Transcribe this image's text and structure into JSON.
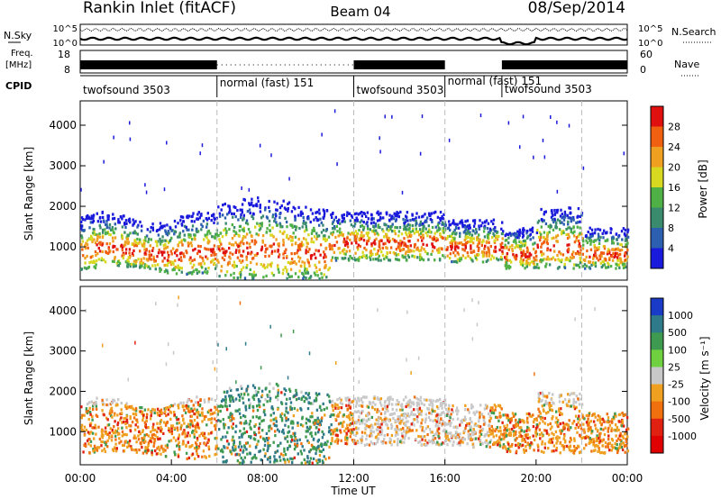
{
  "header": {
    "station": "Rankin Inlet (fitACF)",
    "beam": "Beam 04",
    "date": "08/Sep/2014"
  },
  "top_panel": {
    "nsky_label": "N.Sky",
    "nsky_ticks": [
      "10^5",
      "10^0"
    ],
    "nsearch_label": "N.Search",
    "nsearch_ticks": [
      "10^5",
      "10^0"
    ],
    "freq_label_1": "Freq.",
    "freq_label_2": "[MHz]",
    "freq_ticks": [
      "18",
      "8"
    ],
    "nave_label": "Nave",
    "nave_ticks": [
      "60",
      "0"
    ],
    "cpid_label": "CPID",
    "modes": [
      {
        "label": "twofsound 3503",
        "start_h": 0,
        "end_h": 6
      },
      {
        "label": "normal (fast) 151",
        "start_h": 6,
        "end_h": 12
      },
      {
        "label": "twofsound 3503",
        "start_h": 12,
        "end_h": 16
      },
      {
        "label": "normal (fast) 151",
        "start_h": 16,
        "end_h": 18.5
      },
      {
        "label": "twofsound 3503",
        "start_h": 18.5,
        "end_h": 22
      }
    ]
  },
  "chart_data": [
    {
      "type": "heatmap",
      "title": "",
      "xlabel": "",
      "ylabel": "Slant Range [km]",
      "ylim": [
        180,
        4600
      ],
      "yticks": [
        "1000",
        "2000",
        "3000",
        "4000"
      ],
      "colorbar": {
        "label": "Power [dB]",
        "ticks": [
          "4",
          "8",
          "12",
          "16",
          "20",
          "24",
          "28"
        ],
        "colors": [
          "#1a1adc",
          "#2c5fb0",
          "#3a8a6e",
          "#4fb046",
          "#d8d820",
          "#f0a020",
          "#f06010",
          "#e01010"
        ]
      }
    },
    {
      "type": "heatmap",
      "title": "",
      "xlabel": "Time UT",
      "ylabel": "Slant Range [km]",
      "ylim": [
        180,
        4600
      ],
      "yticks": [
        "1000",
        "2000",
        "3000",
        "4000"
      ],
      "xticks": [
        "00:00",
        "04:00",
        "08:00",
        "12:00",
        "16:00",
        "20:00",
        "00:00"
      ],
      "colorbar": {
        "label": "Velocity [m s⁻¹]",
        "ticks": [
          "1000",
          "500",
          "100",
          "25",
          "-25",
          "-100",
          "-500",
          "-1000"
        ],
        "colors": [
          "#1a3ac8",
          "#2f7a8a",
          "#3e9a50",
          "#6fd040",
          "#c8c8c8",
          "#f0a020",
          "#f07010",
          "#e02010",
          "#e00000"
        ]
      }
    }
  ]
}
